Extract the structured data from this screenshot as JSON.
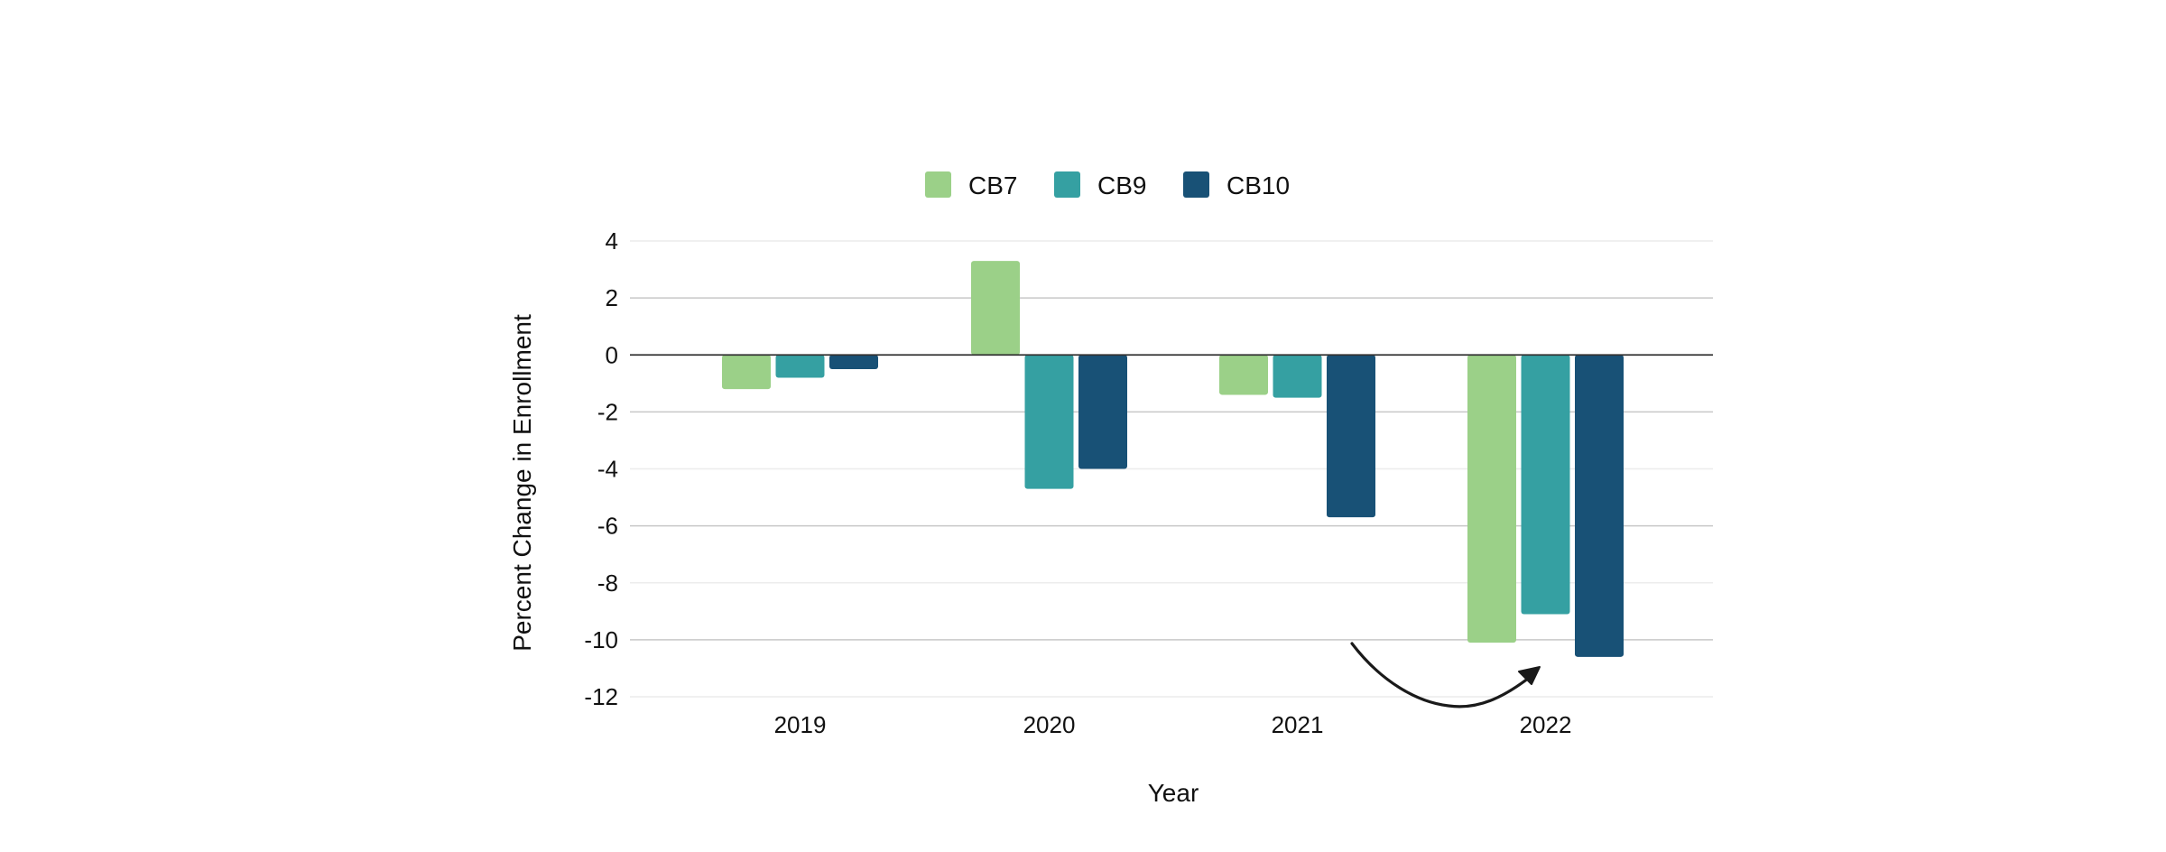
{
  "chart_data": {
    "type": "bar",
    "categories": [
      "2019",
      "2020",
      "2021",
      "2022"
    ],
    "series": [
      {
        "name": "CB7",
        "values": [
          -1.2,
          3.3,
          -1.4,
          -10.1
        ]
      },
      {
        "name": "CB9",
        "values": [
          -0.8,
          -4.7,
          -1.5,
          -9.1
        ]
      },
      {
        "name": "CB10",
        "values": [
          -0.5,
          -4.0,
          -5.7,
          -10.6
        ]
      }
    ],
    "colors": {
      "CB7": "#9bd088",
      "CB9": "#35a0a2",
      "CB10": "#185176"
    },
    "xlabel": "Year",
    "ylabel": "Percent Change in Enrollment",
    "ylim": [
      -12,
      4
    ],
    "yticks": [
      4,
      2,
      0,
      -2,
      -4,
      -6,
      -8,
      -10,
      -12
    ],
    "grid": true,
    "legend_position": "top-center",
    "annotation": "curved arrow pointing from 2021 toward 2022 bars"
  }
}
